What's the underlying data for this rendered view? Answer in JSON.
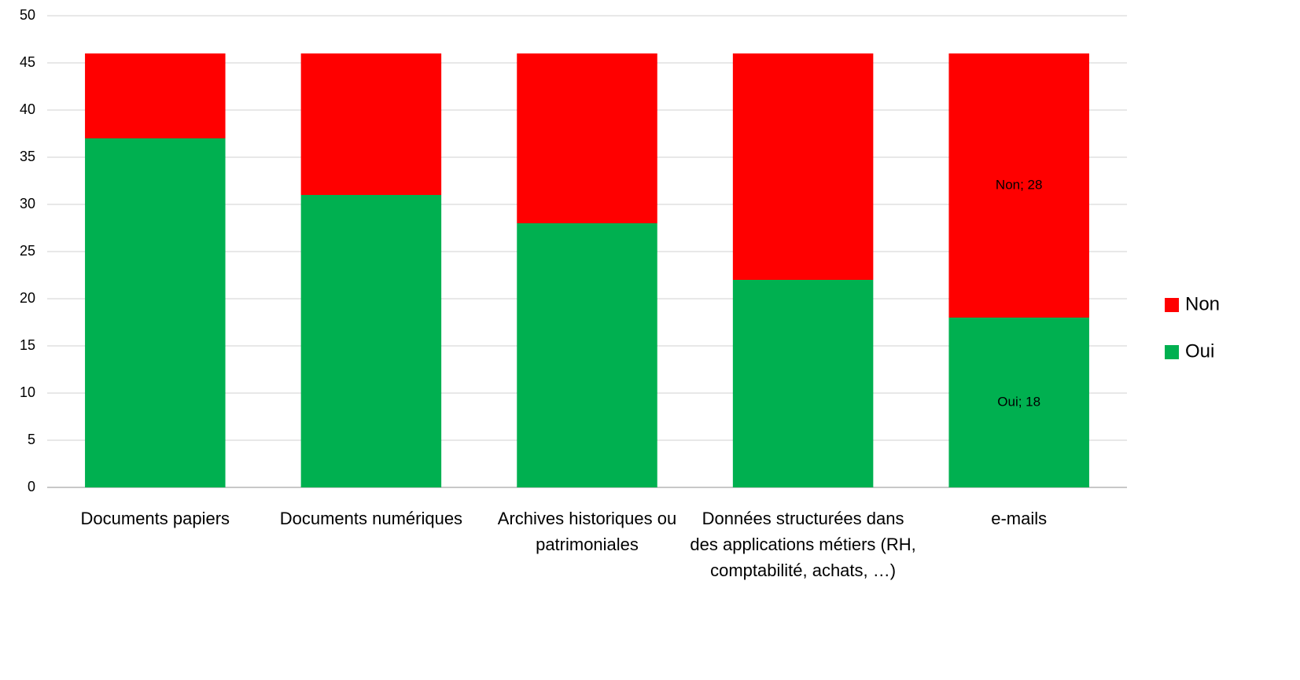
{
  "chart_data": {
    "type": "stacked_bar",
    "categories": [
      "Documents papiers",
      "Documents numériques",
      "Archives historiques ou patrimoniales",
      "Données structurées dans des applications métiers (RH, comptabilité, achats, …)",
      "e-mails"
    ],
    "series": [
      {
        "name": "Oui",
        "color": "#00b050",
        "values": [
          37,
          31,
          28,
          22,
          18
        ],
        "value_labels": [
          null,
          null,
          null,
          null,
          "Oui; 18"
        ]
      },
      {
        "name": "Non",
        "color": "#ff0000",
        "values": [
          9,
          15,
          18,
          24,
          28
        ],
        "value_labels": [
          null,
          null,
          null,
          null,
          "Non; 28"
        ]
      }
    ],
    "ylim": [
      0,
      50
    ],
    "yticks": [
      0,
      5,
      10,
      15,
      20,
      25,
      30,
      35,
      40,
      45,
      50
    ],
    "grid": true,
    "legend": "right"
  }
}
